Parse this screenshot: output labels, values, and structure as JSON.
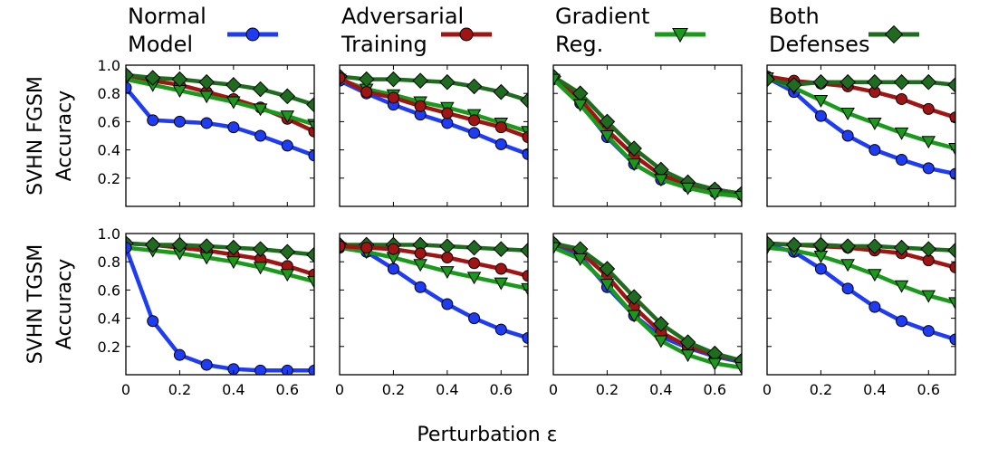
{
  "figure": {
    "xlabel": "Perturbation ε",
    "row_labels": [
      {
        "line1": "SVHN FGSM",
        "line2": "Accuracy"
      },
      {
        "line1": "SVHN TGSM",
        "line2": "Accuracy"
      }
    ],
    "panel_titles": [
      {
        "line1": "Normal",
        "line2": "Model"
      },
      {
        "line1": "Adversarial",
        "line2": "Training"
      },
      {
        "line1": "Gradient",
        "line2": "Reg."
      },
      {
        "line1": "Both",
        "line2": "Defenses"
      }
    ]
  },
  "colors": {
    "normal": "#1f3cf5",
    "adversarial": "#a01414",
    "gradient": "#1a9a1a",
    "both": "#1f6b1f"
  },
  "chart_data": {
    "type": "line",
    "title": "",
    "xlabel": "Perturbation ε",
    "x": [
      0,
      0.1,
      0.2,
      0.3,
      0.4,
      0.5,
      0.6,
      0.7
    ],
    "xlim": [
      0,
      0.7
    ],
    "ylim": [
      0,
      1.0
    ],
    "xticks": [
      "0",
      "0.2",
      "0.4",
      "0.6"
    ],
    "yticks": [
      "1.0",
      "0.8",
      "0.6",
      "0.4",
      "0.2"
    ],
    "grid": false,
    "legend": [
      {
        "name": "Normal Model",
        "marker": "circle",
        "color_key": "normal"
      },
      {
        "name": "Adversarial Training",
        "marker": "circle",
        "color_key": "adversarial"
      },
      {
        "name": "Gradient Reg.",
        "marker": "triangle-down",
        "color_key": "gradient"
      },
      {
        "name": "Both Defenses",
        "marker": "diamond",
        "color_key": "both"
      }
    ],
    "rows": [
      {
        "ylabel": "SVHN FGSM Accuracy",
        "panels": [
          {
            "highlight": "Normal Model",
            "series": [
              {
                "name": "Normal Model",
                "marker": "circle",
                "color_key": "normal",
                "values": [
                  0.84,
                  0.61,
                  0.6,
                  0.59,
                  0.56,
                  0.5,
                  0.43,
                  0.36
                ]
              },
              {
                "name": "Adversarial Training",
                "marker": "circle",
                "color_key": "adversarial",
                "values": [
                  0.93,
                  0.89,
                  0.86,
                  0.81,
                  0.76,
                  0.7,
                  0.62,
                  0.53
                ]
              },
              {
                "name": "Gradient Reg.",
                "marker": "triangle-down",
                "color_key": "gradient",
                "values": [
                  0.9,
                  0.86,
                  0.82,
                  0.78,
                  0.74,
                  0.69,
                  0.64,
                  0.58
                ]
              },
              {
                "name": "Both Defenses",
                "marker": "diamond",
                "color_key": "both",
                "values": [
                  0.93,
                  0.91,
                  0.9,
                  0.88,
                  0.86,
                  0.83,
                  0.78,
                  0.72
                ]
              }
            ]
          },
          {
            "highlight": "Adversarial Training",
            "series": [
              {
                "name": "Normal Model",
                "marker": "circle",
                "color_key": "normal",
                "values": [
                  0.89,
                  0.8,
                  0.72,
                  0.65,
                  0.59,
                  0.52,
                  0.44,
                  0.37
                ]
              },
              {
                "name": "Adversarial Training",
                "marker": "circle",
                "color_key": "adversarial",
                "values": [
                  0.91,
                  0.81,
                  0.77,
                  0.71,
                  0.66,
                  0.61,
                  0.56,
                  0.49
                ]
              },
              {
                "name": "Gradient Reg.",
                "marker": "triangle-down",
                "color_key": "gradient",
                "values": [
                  0.9,
                  0.83,
                  0.79,
                  0.74,
                  0.7,
                  0.65,
                  0.59,
                  0.53
                ]
              },
              {
                "name": "Both Defenses",
                "marker": "diamond",
                "color_key": "both",
                "values": [
                  0.92,
                  0.9,
                  0.9,
                  0.89,
                  0.88,
                  0.85,
                  0.81,
                  0.75
                ]
              }
            ]
          },
          {
            "highlight": "Gradient Reg.",
            "series": [
              {
                "name": "Normal Model",
                "marker": "circle",
                "color_key": "normal",
                "values": [
                  0.9,
                  0.73,
                  0.49,
                  0.3,
                  0.19,
                  0.14,
                  0.1,
                  0.08
                ]
              },
              {
                "name": "Adversarial Training",
                "marker": "circle",
                "color_key": "adversarial",
                "values": [
                  0.91,
                  0.76,
                  0.54,
                  0.36,
                  0.22,
                  0.16,
                  0.12,
                  0.09
                ]
              },
              {
                "name": "Gradient Reg.",
                "marker": "triangle-down",
                "color_key": "gradient",
                "values": [
                  0.9,
                  0.72,
                  0.5,
                  0.3,
                  0.19,
                  0.13,
                  0.09,
                  0.07
                ]
              },
              {
                "name": "Both Defenses",
                "marker": "diamond",
                "color_key": "both",
                "values": [
                  0.92,
                  0.8,
                  0.6,
                  0.41,
                  0.26,
                  0.17,
                  0.12,
                  0.09
                ]
              }
            ]
          },
          {
            "highlight": "Both Defenses",
            "series": [
              {
                "name": "Normal Model",
                "marker": "circle",
                "color_key": "normal",
                "values": [
                  0.91,
                  0.81,
                  0.64,
                  0.5,
                  0.4,
                  0.33,
                  0.27,
                  0.23
                ]
              },
              {
                "name": "Adversarial Training",
                "marker": "circle",
                "color_key": "adversarial",
                "values": [
                  0.92,
                  0.89,
                  0.87,
                  0.85,
                  0.81,
                  0.76,
                  0.69,
                  0.63
                ]
              },
              {
                "name": "Gradient Reg.",
                "marker": "triangle-down",
                "color_key": "gradient",
                "values": [
                  0.91,
                  0.84,
                  0.75,
                  0.66,
                  0.59,
                  0.52,
                  0.46,
                  0.41
                ]
              },
              {
                "name": "Both Defenses",
                "marker": "diamond",
                "color_key": "both",
                "values": [
                  0.9,
                  0.86,
                  0.88,
                  0.88,
                  0.88,
                  0.88,
                  0.88,
                  0.86
                ]
              }
            ]
          }
        ]
      },
      {
        "ylabel": "SVHN TGSM Accuracy",
        "panels": [
          {
            "highlight": "Normal Model",
            "series": [
              {
                "name": "Normal Model",
                "marker": "circle",
                "color_key": "normal",
                "values": [
                  0.9,
                  0.38,
                  0.14,
                  0.07,
                  0.04,
                  0.03,
                  0.03,
                  0.03
                ]
              },
              {
                "name": "Adversarial Training",
                "marker": "circle",
                "color_key": "adversarial",
                "values": [
                  0.93,
                  0.92,
                  0.9,
                  0.88,
                  0.85,
                  0.82,
                  0.77,
                  0.71
                ]
              },
              {
                "name": "Gradient Reg.",
                "marker": "triangle-down",
                "color_key": "gradient",
                "values": [
                  0.9,
                  0.88,
                  0.86,
                  0.83,
                  0.8,
                  0.76,
                  0.71,
                  0.66
                ]
              },
              {
                "name": "Both Defenses",
                "marker": "diamond",
                "color_key": "both",
                "values": [
                  0.93,
                  0.92,
                  0.92,
                  0.91,
                  0.9,
                  0.89,
                  0.87,
                  0.85
                ]
              }
            ]
          },
          {
            "highlight": "Adversarial Training",
            "series": [
              {
                "name": "Normal Model",
                "marker": "circle",
                "color_key": "normal",
                "values": [
                  0.9,
                  0.87,
                  0.75,
                  0.62,
                  0.5,
                  0.4,
                  0.32,
                  0.26
                ]
              },
              {
                "name": "Adversarial Training",
                "marker": "circle",
                "color_key": "adversarial",
                "values": [
                  0.91,
                  0.9,
                  0.89,
                  0.86,
                  0.83,
                  0.79,
                  0.75,
                  0.7
                ]
              },
              {
                "name": "Gradient Reg.",
                "marker": "triangle-down",
                "color_key": "gradient",
                "values": [
                  0.9,
                  0.87,
                  0.83,
                  0.78,
                  0.73,
                  0.69,
                  0.65,
                  0.61
                ]
              },
              {
                "name": "Both Defenses",
                "marker": "diamond",
                "color_key": "both",
                "values": [
                  0.92,
                  0.92,
                  0.92,
                  0.92,
                  0.91,
                  0.9,
                  0.89,
                  0.88
                ]
              }
            ]
          },
          {
            "highlight": "Gradient Reg.",
            "series": [
              {
                "name": "Normal Model",
                "marker": "circle",
                "color_key": "normal",
                "values": [
                  0.92,
                  0.84,
                  0.62,
                  0.42,
                  0.27,
                  0.19,
                  0.13,
                  0.09
                ]
              },
              {
                "name": "Adversarial Training",
                "marker": "circle",
                "color_key": "adversarial",
                "values": [
                  0.93,
                  0.87,
                  0.7,
                  0.48,
                  0.3,
                  0.2,
                  0.14,
                  0.1
                ]
              },
              {
                "name": "Gradient Reg.",
                "marker": "triangle-down",
                "color_key": "gradient",
                "values": [
                  0.9,
                  0.82,
                  0.64,
                  0.42,
                  0.24,
                  0.14,
                  0.08,
                  0.05
                ]
              },
              {
                "name": "Both Defenses",
                "marker": "diamond",
                "color_key": "both",
                "values": [
                  0.93,
                  0.89,
                  0.75,
                  0.55,
                  0.36,
                  0.23,
                  0.15,
                  0.1
                ]
              }
            ]
          },
          {
            "highlight": "Both Defenses",
            "series": [
              {
                "name": "Normal Model",
                "marker": "circle",
                "color_key": "normal",
                "values": [
                  0.92,
                  0.87,
                  0.75,
                  0.61,
                  0.48,
                  0.38,
                  0.31,
                  0.25
                ]
              },
              {
                "name": "Adversarial Training",
                "marker": "circle",
                "color_key": "adversarial",
                "values": [
                  0.93,
                  0.92,
                  0.91,
                  0.9,
                  0.88,
                  0.86,
                  0.81,
                  0.76
                ]
              },
              {
                "name": "Gradient Reg.",
                "marker": "triangle-down",
                "color_key": "gradient",
                "values": [
                  0.9,
                  0.88,
                  0.84,
                  0.78,
                  0.71,
                  0.63,
                  0.56,
                  0.51
                ]
              },
              {
                "name": "Both Defenses",
                "marker": "diamond",
                "color_key": "both",
                "values": [
                  0.93,
                  0.92,
                  0.92,
                  0.91,
                  0.91,
                  0.9,
                  0.89,
                  0.88
                ]
              }
            ]
          }
        ]
      }
    ]
  }
}
